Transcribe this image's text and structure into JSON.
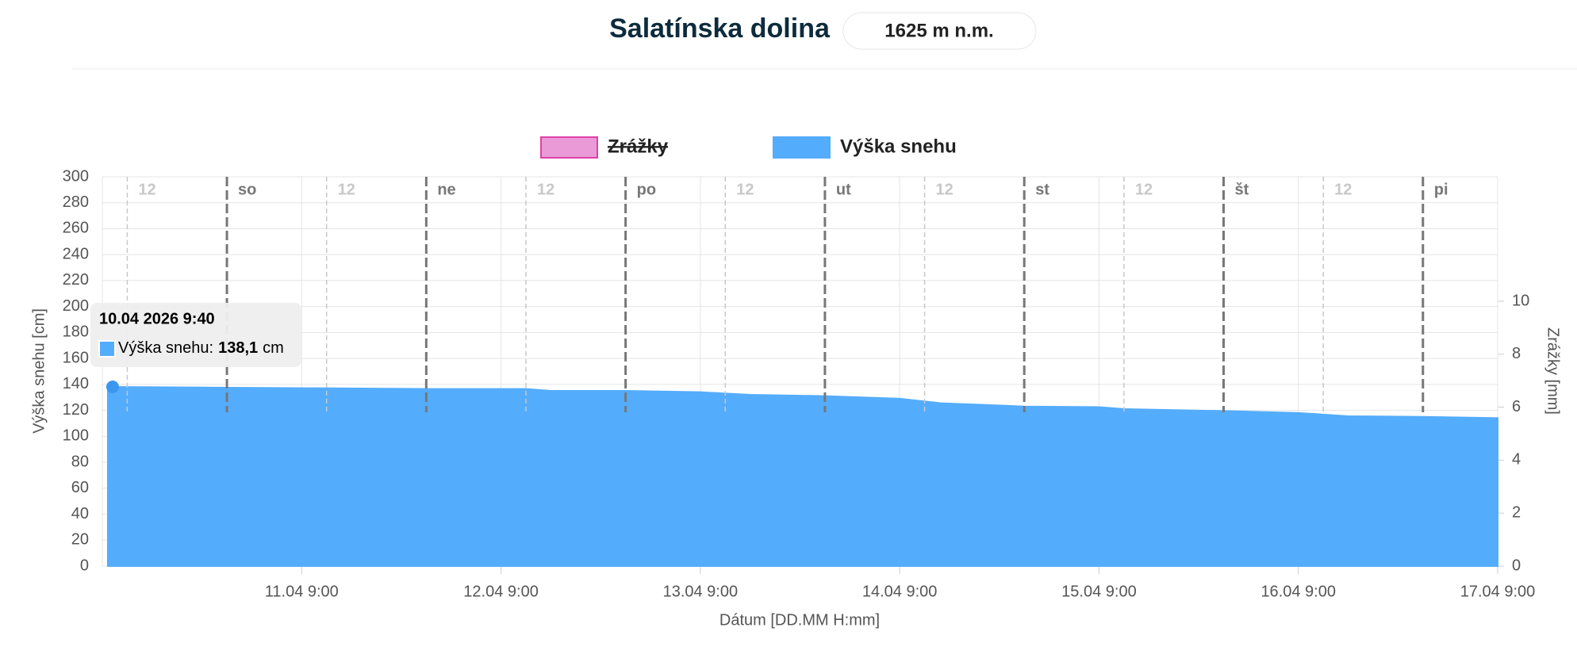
{
  "header": {
    "title": "Salatínska dolina",
    "altitude": "1625 m n.m."
  },
  "chart_data": {
    "type": "area",
    "y_label": "Výška snehu [cm]",
    "y2_label": "Zrážky [mm]",
    "x_label": "Dátum [DD.MM H:mm]",
    "x": [
      "2026-04-10T09:40",
      "2026-04-11T00:00",
      "2026-04-11T12:00",
      "2026-04-12T00:00",
      "2026-04-12T12:00",
      "2026-04-12T15:00",
      "2026-04-13T00:00",
      "2026-04-13T09:00",
      "2026-04-13T15:00",
      "2026-04-14T00:00",
      "2026-04-14T09:00",
      "2026-04-14T14:00",
      "2026-04-15T00:00",
      "2026-04-15T09:00",
      "2026-04-15T12:00",
      "2026-04-16T00:00",
      "2026-04-16T09:00",
      "2026-04-16T15:00",
      "2026-04-17T00:00",
      "2026-04-17T09:00"
    ],
    "series": [
      {
        "name": "Zrážky",
        "color": "#ea9ad6",
        "axis": "y2",
        "hidden": true
      },
      {
        "name": "Výška snehu",
        "color": "#54acfc",
        "values": [
          138.1,
          137.5,
          137,
          136.5,
          136.5,
          135,
          135,
          134,
          132,
          131,
          129,
          125.5,
          123,
          122.5,
          121,
          119.5,
          118,
          115.5,
          115,
          114
        ]
      }
    ],
    "xlim": [
      "2026-04-10T09:00",
      "2026-04-17T09:00"
    ],
    "xticks": [
      {
        "value": "2026-04-11T09:00",
        "label": "11.04 9:00"
      },
      {
        "value": "2026-04-12T09:00",
        "label": "12.04 9:00"
      },
      {
        "value": "2026-04-13T09:00",
        "label": "13.04 9:00"
      },
      {
        "value": "2026-04-14T09:00",
        "label": "14.04 9:00"
      },
      {
        "value": "2026-04-15T09:00",
        "label": "15.04 9:00"
      },
      {
        "value": "2026-04-16T09:00",
        "label": "16.04 9:00"
      },
      {
        "value": "2026-04-17T09:00",
        "label": "17.04 9:00"
      }
    ],
    "day_markers": [
      {
        "value": "2026-04-11T00:00",
        "label": "so"
      },
      {
        "value": "2026-04-12T00:00",
        "label": "ne"
      },
      {
        "value": "2026-04-13T00:00",
        "label": "po"
      },
      {
        "value": "2026-04-14T00:00",
        "label": "ut"
      },
      {
        "value": "2026-04-15T00:00",
        "label": "st"
      },
      {
        "value": "2026-04-16T00:00",
        "label": "št"
      },
      {
        "value": "2026-04-17T00:00",
        "label": "pi"
      }
    ],
    "noon_markers": [
      {
        "value": "2026-04-10T12:00",
        "label": "12"
      },
      {
        "value": "2026-04-11T12:00",
        "label": "12"
      },
      {
        "value": "2026-04-12T12:00",
        "label": "12"
      },
      {
        "value": "2026-04-13T12:00",
        "label": "12"
      },
      {
        "value": "2026-04-14T12:00",
        "label": "12"
      },
      {
        "value": "2026-04-15T12:00",
        "label": "12"
      },
      {
        "value": "2026-04-16T12:00",
        "label": "12"
      }
    ],
    "ylim": [
      0,
      300
    ],
    "yticks": [
      0,
      20,
      40,
      60,
      80,
      100,
      120,
      140,
      160,
      180,
      200,
      220,
      240,
      260,
      280,
      300
    ],
    "y2lim": [
      0,
      14.7
    ],
    "y2ticks": [
      0,
      2,
      4,
      6,
      8,
      10
    ],
    "grid": true,
    "tooltip": {
      "title": "10.04 2026 9:40",
      "label": "Výška snehu:",
      "value_label": "138,1",
      "unit": "cm",
      "point": 0
    }
  }
}
